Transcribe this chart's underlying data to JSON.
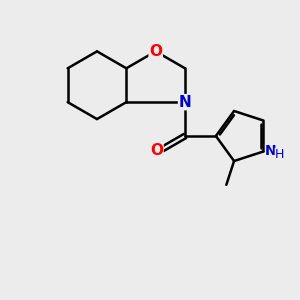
{
  "bg_color": "#ececec",
  "bond_color": "#000000",
  "N_color": "#0000cc",
  "O_color": "#ff0000",
  "line_width": 1.8,
  "fig_size": [
    3.0,
    3.0
  ],
  "dpi": 100,
  "xlim": [
    0,
    10
  ],
  "ylim": [
    0,
    10
  ]
}
